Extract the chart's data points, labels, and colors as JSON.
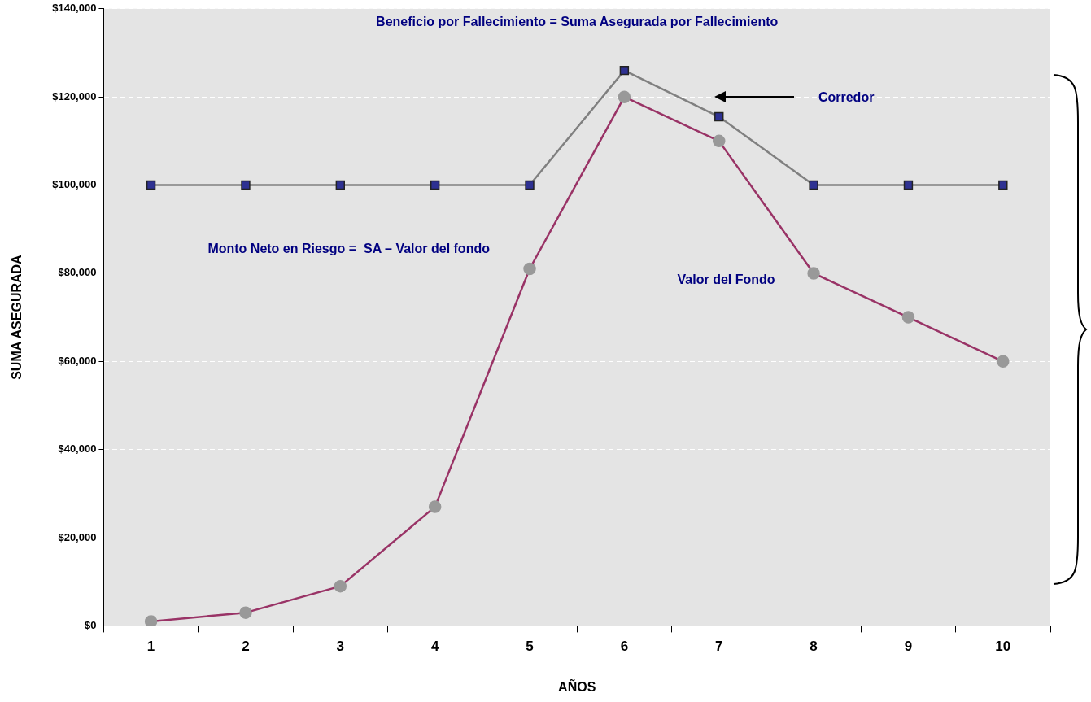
{
  "chart_data": {
    "type": "line",
    "xlabel": "AÑOS",
    "ylabel": "SUMA ASEGURADA",
    "categories": [
      "1",
      "2",
      "3",
      "4",
      "5",
      "6",
      "7",
      "8",
      "9",
      "10"
    ],
    "series": [
      {
        "color": "#808080",
        "marker": "square",
        "values": [
          100000,
          100000,
          100000,
          100000,
          100000,
          126000,
          115500,
          100000,
          100000,
          100000
        ]
      },
      {
        "color": "#993366",
        "marker": "circle",
        "values": [
          1000,
          3000,
          9000,
          27000,
          81000,
          120000,
          110000,
          80000,
          70000,
          60000
        ]
      }
    ],
    "ylim": [
      0,
      140000
    ],
    "yticks": [
      {
        "value": 0,
        "label": "$0"
      },
      {
        "value": 20000,
        "label": "$20,000"
      },
      {
        "value": 40000,
        "label": "$40,000"
      },
      {
        "value": 60000,
        "label": "$60,000"
      },
      {
        "value": 80000,
        "label": "$80,000"
      },
      {
        "value": 100000,
        "label": "$100,000"
      },
      {
        "value": 120000,
        "label": "$120,000"
      },
      {
        "value": 140000,
        "label": "$140,000"
      }
    ],
    "grid": "y",
    "legend": false,
    "line_style": "solid",
    "annotations": [
      "Beneficio por Fallecimiento = Suma Asegurada por Fallecimiento",
      "Corredor",
      "Monto Neto en Riesgo =  SA – Valor del fondo",
      "Valor del Fondo"
    ]
  }
}
